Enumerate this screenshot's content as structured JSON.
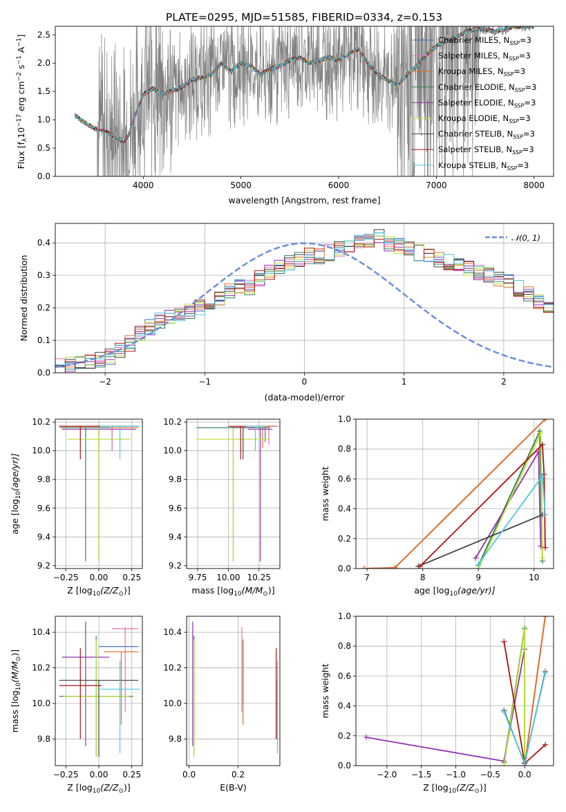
{
  "title": "PLATE=0295, MJD=51585, FIBERID=0334, z=0.153",
  "colors": [
    "#7f8fd4",
    "#e67fc4",
    "#e6701f",
    "#4f8f5f",
    "#8f2faf",
    "#c8e632",
    "#505050",
    "#a01010",
    "#7fd9e6"
  ],
  "colors_dark": [
    "#3a6fbf",
    "#e66fb0",
    "#e07020",
    "#2f7f4f",
    "#9030b0",
    "#b8e030",
    "#404040",
    "#b01010",
    "#50c8e0"
  ],
  "model_names": [
    "Chabrier MILES",
    "Salpeter MILES",
    "Kroupa MILES",
    "Chabrier ELODIE",
    "Salpeter ELODIE",
    "Kroupa ELODIE",
    "Chabrier STELIB",
    "Salpeter STELIB",
    "Kroupa STELIB"
  ],
  "chart_data": [
    {
      "id": "spectrum",
      "type": "line",
      "xlabel": "wavelength [Angstrom, rest frame]",
      "ylabel_parts": {
        "a": "Flux [f",
        "b": "λ",
        "c": "10",
        "d": "−17",
        "e": " erg cm",
        "f": "−2",
        "g": " s",
        "h": "−1",
        "i": " A",
        "j": "−1",
        "k": "]"
      },
      "xlim": [
        3100,
        8200
      ],
      "ylim": [
        0,
        2.65
      ],
      "xticks": [
        4000,
        5000,
        6000,
        7000,
        8000
      ],
      "yticks": [
        0.0,
        0.5,
        1.0,
        1.5,
        2.0,
        2.5
      ],
      "legend_suffix": ", N",
      "legend_sub": "SSP",
      "legend_eq": "=3",
      "continuum": {
        "x": [
          3300,
          3400,
          3500,
          3600,
          3700,
          3800,
          3850,
          3900,
          4000,
          4100,
          4200,
          4300,
          4400,
          4500,
          4600,
          4700,
          4800,
          4900,
          5000,
          5100,
          5200,
          5300,
          5400,
          5500,
          5600,
          5700,
          5800,
          5900,
          6000,
          6100,
          6200,
          6300,
          6400,
          6500,
          6600,
          6700,
          6800,
          6900,
          7000,
          7100,
          7200,
          7300,
          7400,
          7500,
          7600,
          7700,
          7800,
          7900,
          8000
        ],
        "y": [
          1.08,
          0.95,
          0.85,
          0.8,
          0.7,
          0.62,
          0.72,
          1.0,
          1.45,
          1.55,
          1.45,
          1.52,
          1.58,
          1.7,
          1.75,
          1.8,
          2.0,
          1.85,
          2.0,
          1.95,
          1.8,
          1.9,
          1.95,
          2.05,
          2.1,
          2.0,
          2.05,
          2.1,
          2.05,
          2.15,
          2.25,
          2.0,
          1.8,
          1.7,
          1.6,
          1.8,
          1.95,
          2.15,
          2.3,
          2.4,
          2.45,
          2.55,
          2.6,
          2.6,
          2.55,
          2.6,
          2.65,
          2.65,
          2.65
        ]
      }
    },
    {
      "id": "residuals",
      "type": "histogram",
      "xlabel": "(data-model)/error",
      "ylabel": "Normed distribution",
      "xlim": [
        -2.5,
        2.5
      ],
      "ylim": [
        0,
        0.46
      ],
      "xticks": [
        -2,
        -1,
        0,
        1,
        2
      ],
      "yticks": [
        0.0,
        0.1,
        0.2,
        0.3,
        0.4
      ],
      "legend": "𝒩(0, 1)",
      "bin_width": 0.1,
      "bin_start": -2.5,
      "base_hist": [
        0.02,
        0.025,
        0.028,
        0.03,
        0.04,
        0.05,
        0.07,
        0.09,
        0.12,
        0.14,
        0.16,
        0.17,
        0.18,
        0.19,
        0.2,
        0.21,
        0.23,
        0.25,
        0.27,
        0.26,
        0.29,
        0.31,
        0.33,
        0.34,
        0.35,
        0.36,
        0.36,
        0.37,
        0.38,
        0.39,
        0.4,
        0.41,
        0.42,
        0.4,
        0.39,
        0.38,
        0.37,
        0.36,
        0.35,
        0.34,
        0.33,
        0.32,
        0.31,
        0.3,
        0.29,
        0.28,
        0.26,
        0.24,
        0.22,
        0.2
      ]
    },
    {
      "id": "age_vs_Z",
      "type": "errorbar",
      "xlabel_parts": {
        "a": "Z [log",
        "b": "10",
        "c": "(Z/Z",
        "d": "⊙",
        "e": ")]"
      },
      "ylabel_parts": {
        "a": "age  [log",
        "b": "10",
        "c": "(age/yr)]"
      },
      "xlim": [
        -0.33,
        0.33
      ],
      "ylim": [
        9.18,
        10.22
      ],
      "xticks": [
        -0.25,
        0.0,
        0.25
      ],
      "xticklabels": [
        "−0.25",
        "0.00",
        "0.25"
      ],
      "yticks": [
        9.2,
        9.4,
        9.6,
        9.8,
        10.0,
        10.2
      ],
      "points": [
        {
          "x": 0.1,
          "xerr": 0.2,
          "y": 10.17,
          "ylo": 10.0,
          "yhi": 10.17
        },
        {
          "x": 0.1,
          "xerr": 0.2,
          "y": 10.17,
          "ylo": 10.0,
          "yhi": 10.17
        },
        {
          "x": 0.0,
          "xerr": 0.3,
          "y": 10.16,
          "ylo": 10.02,
          "yhi": 10.16
        },
        {
          "x": -0.1,
          "xerr": 0.18,
          "y": 10.16,
          "ylo": 9.23,
          "yhi": 10.16
        },
        {
          "x": 0.0,
          "xerr": 0.28,
          "y": 10.15,
          "ylo": 9.23,
          "yhi": 10.16
        },
        {
          "x": 0.0,
          "xerr": 0.24,
          "y": 10.08,
          "ylo": 9.23,
          "yhi": 10.16
        },
        {
          "x": 0.0,
          "xerr": 0.3,
          "y": 10.17,
          "ylo": 10.17,
          "yhi": 10.17
        },
        {
          "x": -0.14,
          "xerr": 0.16,
          "y": 10.17,
          "ylo": 9.94,
          "yhi": 10.17
        },
        {
          "x": 0.16,
          "xerr": 0.15,
          "y": 10.17,
          "ylo": 9.94,
          "yhi": 10.17
        }
      ]
    },
    {
      "id": "age_vs_mass",
      "type": "errorbar",
      "xlabel_parts": {
        "a": "mass [log",
        "b": "10",
        "c": "(M/M",
        "d": "⊙",
        "e": ")]"
      },
      "xlim": [
        9.66,
        10.42
      ],
      "ylim": [
        9.18,
        10.22
      ],
      "xticks": [
        9.75,
        10.0,
        10.25
      ],
      "xticklabels": [
        "9.75",
        "10.00",
        "10.25"
      ],
      "yticks": [
        9.2,
        9.4,
        9.6,
        9.8,
        10.0,
        10.2
      ],
      "points": [
        {
          "x": 10.3,
          "xerr": 0.08,
          "y": 10.17,
          "ylo": 10.06,
          "yhi": 10.17
        },
        {
          "x": 10.33,
          "xerr": 0.08,
          "y": 10.17,
          "ylo": 10.04,
          "yhi": 10.17
        },
        {
          "x": 10.28,
          "xerr": 0.1,
          "y": 10.17,
          "ylo": 10.02,
          "yhi": 10.17
        },
        {
          "x": 10.04,
          "xerr": 0.3,
          "y": 10.16,
          "ylo": 9.23,
          "yhi": 10.16
        },
        {
          "x": 10.26,
          "xerr": 0.1,
          "y": 10.15,
          "ylo": 9.23,
          "yhi": 10.16
        },
        {
          "x": 10.04,
          "xerr": 0.3,
          "y": 10.08,
          "ylo": 9.23,
          "yhi": 10.16
        },
        {
          "x": 10.12,
          "xerr": 0.1,
          "y": 10.16,
          "ylo": 9.94,
          "yhi": 10.16
        },
        {
          "x": 10.1,
          "xerr": 0.1,
          "y": 10.17,
          "ylo": 9.94,
          "yhi": 10.17
        },
        {
          "x": 10.22,
          "xerr": 0.08,
          "y": 10.17,
          "ylo": 10.0,
          "yhi": 10.17
        }
      ]
    },
    {
      "id": "weight_vs_age",
      "type": "line",
      "xlabel_parts": {
        "a": "age  [log",
        "b": "10",
        "c": "(age/yr)]"
      },
      "ylabel": "mass weight",
      "xlim": [
        6.8,
        10.35
      ],
      "ylim": [
        0,
        1.0
      ],
      "xticks": [
        7,
        8,
        9,
        10
      ],
      "yticks": [
        0.0,
        0.2,
        0.4,
        0.6,
        0.8,
        1.0
      ],
      "series": [
        {
          "x": [
            6.95,
            7.5,
            10.2
          ],
          "y": [
            0.0,
            0.005,
            1.0
          ]
        },
        {
          "x": [
            6.95,
            7.5,
            10.2
          ],
          "y": [
            0.0,
            0.005,
            1.0
          ]
        },
        {
          "x": [
            6.95,
            7.5,
            10.2
          ],
          "y": [
            0.0,
            0.005,
            1.0
          ]
        },
        {
          "x": [
            9.0,
            10.1,
            10.15
          ],
          "y": [
            0.02,
            0.92,
            0.05
          ]
        },
        {
          "x": [
            8.95,
            10.08,
            10.12
          ],
          "y": [
            0.07,
            0.78,
            0.15
          ]
        },
        {
          "x": [
            9.0,
            10.12,
            10.15
          ],
          "y": [
            0.0,
            0.91,
            0.07
          ]
        },
        {
          "x": [
            7.92,
            10.15
          ],
          "y": [
            0.015,
            0.36
          ]
        },
        {
          "x": [
            7.95,
            10.15,
            10.18,
            10.2
          ],
          "y": [
            0.015,
            0.83,
            0.63,
            0.14
          ]
        },
        {
          "x": [
            9.0,
            10.15,
            10.2
          ],
          "y": [
            0.03,
            0.62,
            0.36
          ]
        }
      ]
    },
    {
      "id": "mass_vs_Z",
      "type": "errorbar",
      "xlabel_parts": {
        "a": "Z [log",
        "b": "10",
        "c": "(Z/Z",
        "d": "⊙",
        "e": ")]"
      },
      "ylabel_parts": {
        "a": "mass [log",
        "b": "10",
        "c": "(M/M",
        "d": "⊙",
        "e": ")]"
      },
      "xlim": [
        -0.33,
        0.33
      ],
      "ylim": [
        9.65,
        10.49
      ],
      "xticks": [
        -0.25,
        0.0,
        0.25
      ],
      "xticklabels": [
        "−0.25",
        "0.00",
        "0.25"
      ],
      "yticks": [
        9.8,
        10.0,
        10.2,
        10.4
      ],
      "points": [
        {
          "x": 0.15,
          "xerr": 0.15,
          "y": 10.32,
          "ylo": 10.32,
          "yhi": 10.32
        },
        {
          "x": 0.2,
          "xerr": 0.1,
          "y": 10.42,
          "ylo": 9.95,
          "yhi": 10.43
        },
        {
          "x": 0.17,
          "xerr": 0.13,
          "y": 10.29,
          "ylo": 9.88,
          "yhi": 10.29
        },
        {
          "x": -0.02,
          "xerr": 0.28,
          "y": 10.04,
          "ylo": 9.7,
          "yhi": 10.38
        },
        {
          "x": -0.1,
          "xerr": 0.18,
          "y": 10.26,
          "ylo": 9.76,
          "yhi": 10.46
        },
        {
          "x": -0.02,
          "xerr": 0.25,
          "y": 10.04,
          "ylo": 9.7,
          "yhi": 10.36
        },
        {
          "x": 0.0,
          "xerr": 0.3,
          "y": 10.13,
          "ylo": 9.7,
          "yhi": 10.13
        },
        {
          "x": -0.14,
          "xerr": 0.16,
          "y": 10.1,
          "ylo": 9.8,
          "yhi": 10.31
        },
        {
          "x": 0.16,
          "xerr": 0.15,
          "y": 10.08,
          "ylo": 9.72,
          "yhi": 10.24
        }
      ]
    },
    {
      "id": "mass_vs_ebv",
      "type": "errorbar",
      "xlabel": "E(B-V)",
      "xlim": [
        -0.01,
        0.37
      ],
      "ylim": [
        9.65,
        10.49
      ],
      "xticks": [
        0.0,
        0.2
      ],
      "xticklabels": [
        "0.0",
        "0.2"
      ],
      "yticks": [
        9.8,
        10.0,
        10.2,
        10.4
      ],
      "points": [
        {
          "x": 0.22,
          "y": 10.32,
          "ylo": 10.0,
          "yhi": 10.36
        },
        {
          "x": 0.215,
          "y": 10.35,
          "ylo": 9.95,
          "yhi": 10.43
        },
        {
          "x": 0.22,
          "y": 10.29,
          "ylo": 9.88,
          "yhi": 10.35
        },
        {
          "x": 0.02,
          "y": 10.04,
          "ylo": 9.7,
          "yhi": 10.38
        },
        {
          "x": 0.015,
          "y": 10.26,
          "ylo": 9.76,
          "yhi": 10.46
        },
        {
          "x": 0.02,
          "y": 10.04,
          "ylo": 9.7,
          "yhi": 10.36
        },
        {
          "x": 0.355,
          "y": 10.13,
          "ylo": 9.8,
          "yhi": 10.13
        },
        {
          "x": 0.355,
          "y": 10.1,
          "ylo": 9.8,
          "yhi": 10.31
        },
        {
          "x": 0.36,
          "y": 10.08,
          "ylo": 9.72,
          "yhi": 10.24
        }
      ]
    },
    {
      "id": "weight_vs_Z",
      "type": "line",
      "xlabel_parts": {
        "a": "Z [log",
        "b": "10",
        "c": "(Z/Z",
        "d": "⊙",
        "e": ")]"
      },
      "ylabel": "mass weight",
      "xlim": [
        -2.45,
        0.42
      ],
      "ylim": [
        0,
        1.0
      ],
      "xticks": [
        -2.0,
        -1.5,
        -1.0,
        -0.5,
        0.0
      ],
      "xticklabels": [
        "−2.0",
        "−1.5",
        "−1.0",
        "−0.5",
        "0.0"
      ],
      "yticks": [
        0.0,
        0.2,
        0.4,
        0.6,
        0.8,
        1.0
      ],
      "series": [
        {
          "x": [
            0.0,
            0.3
          ],
          "y": [
            0.0,
            1.0
          ]
        },
        {
          "x": [
            0.0,
            0.3
          ],
          "y": [
            0.0,
            1.0
          ]
        },
        {
          "x": [
            0.0,
            0.3
          ],
          "y": [
            0.0,
            1.0
          ]
        },
        {
          "x": [
            -0.3,
            0.0,
            0.0
          ],
          "y": [
            0.02,
            0.92,
            0.05
          ]
        },
        {
          "x": [
            -2.3,
            -0.3,
            0.0
          ],
          "y": [
            0.19,
            0.03,
            0.78
          ]
        },
        {
          "x": [
            -0.3,
            0.0,
            0.0
          ],
          "y": [
            0.0,
            0.91,
            0.07
          ]
        },
        {
          "x": [
            -0.3,
            0.0,
            0.3
          ],
          "y": [
            0.37,
            0.015,
            0.63
          ]
        },
        {
          "x": [
            -0.3,
            0.0,
            0.3
          ],
          "y": [
            0.83,
            0.015,
            0.14
          ]
        },
        {
          "x": [
            -0.3,
            0.0,
            0.3
          ],
          "y": [
            0.36,
            0.02,
            0.62
          ]
        }
      ]
    }
  ]
}
